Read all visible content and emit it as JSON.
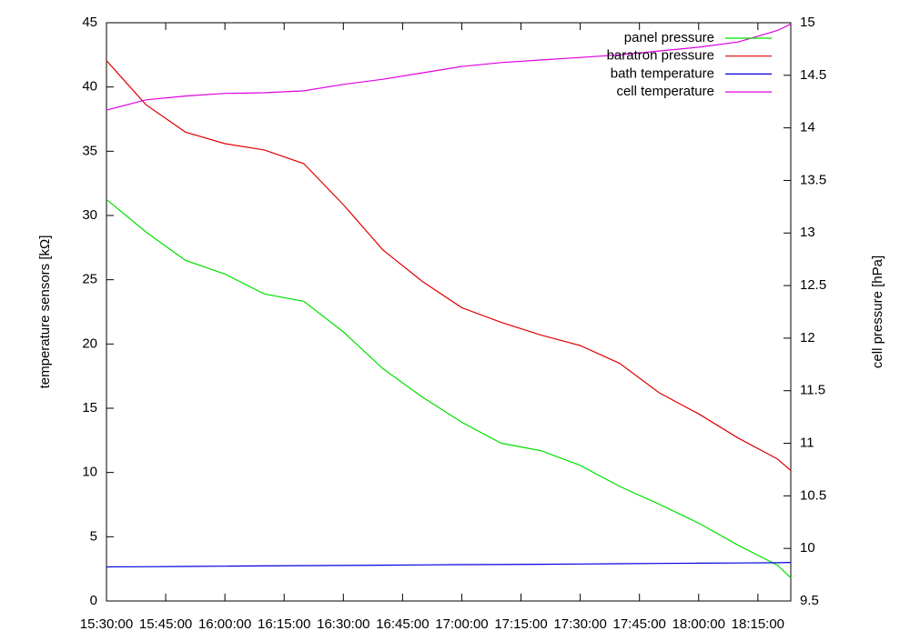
{
  "chart_data": {
    "type": "line",
    "ylabel": "temperature sensors [kΩ]",
    "y2label": "cell pressure [hPa]",
    "x": [
      "15:30:00",
      "15:40:00",
      "15:50:00",
      "16:00:00",
      "16:10:00",
      "16:20:00",
      "16:30:00",
      "16:40:00",
      "16:50:00",
      "17:00:00",
      "17:10:00",
      "17:20:00",
      "17:30:00",
      "17:40:00",
      "17:50:00",
      "18:00:00",
      "18:10:00",
      "18:20:00",
      "18:23:20"
    ],
    "xlim": [
      "15:30:00",
      "18:23:20"
    ],
    "xticks": [
      "15:30:00",
      "15:45:00",
      "16:00:00",
      "16:15:00",
      "16:30:00",
      "16:45:00",
      "17:00:00",
      "17:15:00",
      "17:30:00",
      "17:45:00",
      "18:00:00",
      "18:15:00"
    ],
    "ylim": [
      0,
      45
    ],
    "yticks": [
      0,
      5,
      10,
      15,
      20,
      25,
      30,
      35,
      40,
      45
    ],
    "y2lim": [
      9.5,
      15
    ],
    "y2ticks": [
      9.5,
      10,
      10.5,
      11,
      11.5,
      12,
      12.5,
      13,
      13.5,
      14,
      14.5,
      15
    ],
    "legend": "upper right",
    "series": [
      {
        "name": "panel pressure",
        "color": "#00e000",
        "axis": "y2",
        "values": [
          13.32,
          13.01,
          12.74,
          12.61,
          12.42,
          12.35,
          12.06,
          11.71,
          11.44,
          11.2,
          11.0,
          10.93,
          10.79,
          10.59,
          10.42,
          10.24,
          10.03,
          9.84,
          9.72
        ]
      },
      {
        "name": "baratron pressure",
        "color": "#e00000",
        "axis": "y2",
        "values": [
          14.64,
          14.22,
          13.96,
          13.85,
          13.79,
          13.66,
          13.27,
          12.84,
          12.54,
          12.29,
          12.15,
          12.03,
          11.93,
          11.76,
          11.48,
          11.28,
          11.05,
          10.85,
          10.74
        ]
      },
      {
        "name": "bath temperature",
        "color": "#0000e0",
        "values": [
          2.65,
          2.67,
          2.69,
          2.71,
          2.73,
          2.75,
          2.77,
          2.79,
          2.81,
          2.83,
          2.84,
          2.86,
          2.88,
          2.9,
          2.92,
          2.94,
          2.96,
          2.98,
          3.0
        ]
      },
      {
        "name": "cell temperature",
        "color": "#e000e0",
        "values": [
          38.2,
          39.0,
          39.3,
          39.5,
          39.55,
          39.7,
          40.2,
          40.6,
          41.1,
          41.6,
          41.9,
          42.1,
          42.3,
          42.5,
          42.8,
          43.1,
          43.5,
          44.4,
          44.9
        ]
      }
    ]
  }
}
